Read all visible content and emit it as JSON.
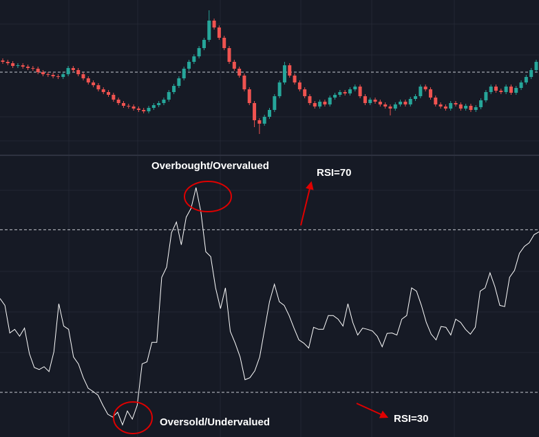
{
  "chart_data": [
    {
      "type": "candlestick",
      "up_color": "#26a69a",
      "down_color": "#ef5350",
      "ylim": [
        5,
        230
      ],
      "levels": [
        125
      ],
      "level_color": "#c8cbd2",
      "ohlc": [
        [
          142,
          145,
          137,
          140
        ],
        [
          140,
          143,
          135,
          138
        ],
        [
          138,
          141,
          131,
          134
        ],
        [
          134,
          138,
          131,
          135
        ],
        [
          135,
          138,
          130,
          133
        ],
        [
          133,
          136,
          128,
          131
        ],
        [
          131,
          134,
          127,
          130
        ],
        [
          130,
          133,
          122,
          125
        ],
        [
          125,
          128,
          119,
          122
        ],
        [
          122,
          125,
          118,
          121
        ],
        [
          121,
          124,
          116,
          119
        ],
        [
          119,
          122,
          115,
          118
        ],
        [
          118,
          125,
          115,
          122
        ],
        [
          122,
          134,
          119,
          131
        ],
        [
          131,
          134,
          125,
          128
        ],
        [
          128,
          131,
          119,
          122
        ],
        [
          122,
          125,
          113,
          116
        ],
        [
          116,
          119,
          107,
          110
        ],
        [
          110,
          113,
          103,
          106
        ],
        [
          106,
          109,
          97,
          100
        ],
        [
          100,
          103,
          93,
          96
        ],
        [
          96,
          99,
          89,
          92
        ],
        [
          92,
          95,
          82,
          85
        ],
        [
          85,
          88,
          77,
          80
        ],
        [
          80,
          83,
          73,
          76
        ],
        [
          76,
          79,
          72,
          75
        ],
        [
          75,
          78,
          69,
          72
        ],
        [
          72,
          75,
          67,
          70
        ],
        [
          70,
          73,
          65,
          68
        ],
        [
          68,
          76,
          65,
          73
        ],
        [
          73,
          80,
          70,
          77
        ],
        [
          77,
          83,
          74,
          80
        ],
        [
          80,
          88,
          77,
          85
        ],
        [
          85,
          99,
          82,
          96
        ],
        [
          96,
          108,
          93,
          105
        ],
        [
          105,
          119,
          102,
          116
        ],
        [
          116,
          133,
          113,
          130
        ],
        [
          130,
          143,
          127,
          140
        ],
        [
          140,
          151,
          137,
          148
        ],
        [
          148,
          163,
          145,
          160
        ],
        [
          160,
          175,
          157,
          172
        ],
        [
          172,
          215,
          169,
          200
        ],
        [
          200,
          203,
          187,
          190
        ],
        [
          190,
          193,
          172,
          175
        ],
        [
          175,
          178,
          157,
          160
        ],
        [
          160,
          163,
          137,
          140
        ],
        [
          140,
          143,
          127,
          130
        ],
        [
          130,
          133,
          117,
          120
        ],
        [
          120,
          123,
          97,
          100
        ],
        [
          100,
          103,
          77,
          80
        ],
        [
          80,
          83,
          45,
          55
        ],
        [
          55,
          58,
          35,
          50
        ],
        [
          50,
          63,
          47,
          60
        ],
        [
          60,
          73,
          57,
          70
        ],
        [
          70,
          93,
          67,
          90
        ],
        [
          90,
          113,
          87,
          110
        ],
        [
          110,
          140,
          107,
          135
        ],
        [
          135,
          138,
          117,
          120
        ],
        [
          120,
          123,
          107,
          110
        ],
        [
          110,
          113,
          97,
          100
        ],
        [
          100,
          103,
          87,
          90
        ],
        [
          90,
          93,
          77,
          80
        ],
        [
          80,
          83,
          72,
          75
        ],
        [
          75,
          85,
          72,
          82
        ],
        [
          82,
          85,
          75,
          78
        ],
        [
          78,
          91,
          75,
          88
        ],
        [
          88,
          95,
          85,
          92
        ],
        [
          92,
          99,
          89,
          96
        ],
        [
          96,
          99,
          91,
          94
        ],
        [
          94,
          103,
          91,
          100
        ],
        [
          100,
          107,
          97,
          104
        ],
        [
          104,
          107,
          87,
          90
        ],
        [
          90,
          93,
          77,
          80
        ],
        [
          80,
          88,
          77,
          85
        ],
        [
          85,
          88,
          79,
          82
        ],
        [
          82,
          85,
          75,
          78
        ],
        [
          78,
          81,
          72,
          75
        ],
        [
          75,
          78,
          62,
          72
        ],
        [
          72,
          81,
          69,
          78
        ],
        [
          78,
          85,
          75,
          82
        ],
        [
          82,
          85,
          75,
          78
        ],
        [
          78,
          89,
          75,
          86
        ],
        [
          86,
          93,
          83,
          90
        ],
        [
          90,
          107,
          87,
          104
        ],
        [
          104,
          107,
          97,
          100
        ],
        [
          100,
          103,
          85,
          88
        ],
        [
          88,
          91,
          75,
          78
        ],
        [
          78,
          81,
          72,
          75
        ],
        [
          75,
          78,
          69,
          72
        ],
        [
          72,
          83,
          69,
          80
        ],
        [
          80,
          83,
          75,
          78
        ],
        [
          78,
          81,
          69,
          72
        ],
        [
          72,
          79,
          69,
          76
        ],
        [
          76,
          79,
          67,
          70
        ],
        [
          70,
          77,
          67,
          74
        ],
        [
          74,
          87,
          71,
          84
        ],
        [
          84,
          99,
          81,
          96
        ],
        [
          96,
          107,
          93,
          104
        ],
        [
          104,
          107,
          95,
          98
        ],
        [
          98,
          101,
          93,
          96
        ],
        [
          96,
          107,
          93,
          104
        ],
        [
          104,
          107,
          92,
          95
        ],
        [
          95,
          105,
          92,
          102
        ],
        [
          102,
          113,
          99,
          110
        ],
        [
          110,
          121,
          107,
          118
        ],
        [
          118,
          131,
          115,
          128
        ],
        [
          128,
          143,
          125,
          140
        ]
      ]
    },
    {
      "type": "line",
      "color": "#ffffff",
      "ylim": [
        19,
        88
      ],
      "levels": [
        30,
        70
      ],
      "level_color": "#c8cbd2",
      "annotations": [
        "Overbought/Overvalued",
        "RSI=70",
        "Oversold/Undervalued",
        "RSI=30"
      ],
      "values": [
        53.1,
        51.4,
        44.6,
        45.5,
        43.8,
        45.8,
        39.5,
        36.1,
        35.6,
        36.3,
        35.1,
        40.0,
        51.8,
        46.3,
        45.5,
        38.7,
        37.0,
        33.6,
        31.0,
        30.2,
        29.3,
        26.8,
        24.6,
        23.9,
        25.1,
        22.0,
        25.4,
        23.4,
        26.8,
        37.0,
        37.5,
        42.3,
        42.3,
        58.3,
        60.8,
        69.3,
        71.9,
        66.3,
        73.1,
        75.3,
        80.4,
        74.4,
        64.6,
        63.4,
        55.7,
        50.6,
        55.7,
        45.0,
        42.1,
        38.7,
        33.1,
        33.6,
        35.3,
        38.7,
        45.5,
        52.3,
        56.6,
        52.3,
        51.4,
        48.9,
        45.8,
        42.9,
        42.1,
        40.9,
        46.0,
        45.5,
        45.5,
        48.9,
        48.9,
        48.0,
        46.3,
        51.8,
        47.2,
        44.1,
        45.8,
        45.5,
        45.1,
        43.8,
        41.2,
        44.5,
        44.6,
        44.1,
        48.0,
        48.9,
        55.7,
        54.9,
        51.4,
        47.2,
        44.3,
        42.9,
        46.2,
        46.0,
        44.1,
        48.0,
        47.2,
        45.5,
        44.3,
        46.0,
        54.9,
        55.7,
        59.4,
        56.0,
        51.4,
        51.1,
        58.3,
        60.0,
        64.2,
        65.9,
        66.8,
        68.8,
        69.5
      ]
    }
  ]
}
